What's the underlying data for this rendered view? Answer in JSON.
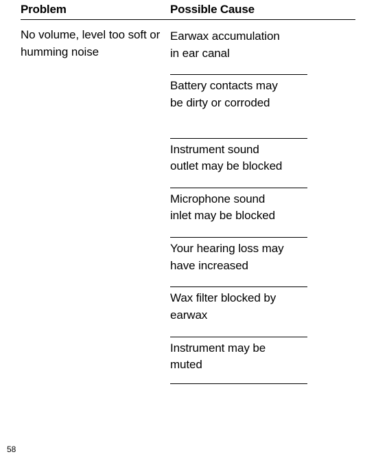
{
  "header": {
    "problem_label": "Problem",
    "cause_label": "Possible Cause"
  },
  "row": {
    "problem": "No volume, level too\nsoft or humming noise",
    "causes": [
      "Earwax accumulation\nin ear canal",
      "Battery contacts may\nbe dirty or corroded",
      "Instrument sound\noutlet may be blocked",
      "Microphone sound\ninlet may be blocked",
      "Your hearing loss may\nhave increased",
      "Wax filter blocked by\nearwax",
      "Instrument may be\nmuted"
    ]
  },
  "page_number": "58"
}
